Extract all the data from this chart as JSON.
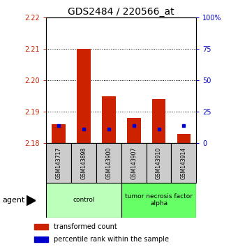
{
  "title": "GDS2484 / 220566_at",
  "samples": [
    "GSM143717",
    "GSM143898",
    "GSM143900",
    "GSM143907",
    "GSM143910",
    "GSM143914"
  ],
  "red_bottom": [
    2.18,
    2.18,
    2.18,
    2.18,
    2.18,
    2.18
  ],
  "red_top": [
    2.186,
    2.21,
    2.195,
    2.188,
    2.194,
    2.183
  ],
  "blue_vals": [
    2.1855,
    2.1845,
    2.1845,
    2.1855,
    2.1845,
    2.1855
  ],
  "blue_only_last": true,
  "ylim_left": [
    2.18,
    2.22
  ],
  "ylim_right": [
    0,
    100
  ],
  "yticks_left": [
    2.18,
    2.19,
    2.2,
    2.21,
    2.22
  ],
  "yticks_right": [
    0,
    25,
    50,
    75,
    100
  ],
  "ytick_labels_right": [
    "0",
    "25",
    "50",
    "75",
    "100%"
  ],
  "groups": [
    {
      "label": "control",
      "start": 0,
      "end": 3,
      "color": "#bbffbb"
    },
    {
      "label": "tumor necrosis factor\nalpha",
      "start": 3,
      "end": 6,
      "color": "#66ff66"
    }
  ],
  "agent_label": "agent",
  "legend_red": "transformed count",
  "legend_blue": "percentile rank within the sample",
  "bar_width": 0.55,
  "red_color": "#cc2200",
  "blue_color": "#0000cc",
  "label_color_left": "#cc2200",
  "label_color_right": "#0000cc",
  "sample_box_color": "#cccccc",
  "title_fontsize": 10,
  "tick_fontsize": 7,
  "legend_fontsize": 7
}
